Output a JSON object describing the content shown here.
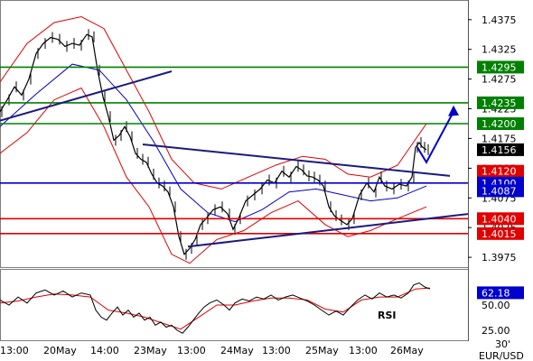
{
  "chart_data": [
    {
      "type": "line",
      "pair": "EUR/USD",
      "timeframe": "30'",
      "x_labels": [
        "13:00",
        "20May",
        "14:00",
        "23May",
        "13:00",
        "24May",
        "13:00",
        "25May",
        "13:00",
        "26May"
      ],
      "y_ticks": [
        1.4375,
        1.4325,
        1.4275,
        1.4225,
        1.4175,
        1.4125,
        1.4075,
        1.4025,
        1.3975
      ],
      "y_range": [
        1.396,
        1.4405
      ],
      "last_price": 1.4156,
      "level_tags": [
        {
          "value": "1.4295",
          "color": "#008000"
        },
        {
          "value": "1.4235",
          "color": "#008000"
        },
        {
          "value": "1.4200",
          "color": "#008000"
        },
        {
          "value": "1.4156",
          "color": "#000000"
        },
        {
          "value": "1.4120",
          "color": "#e00000"
        },
        {
          "value": "1.4100",
          "color": "#0000cc"
        },
        {
          "value": "1.4087",
          "color": "#0000cc"
        },
        {
          "value": "1.4040",
          "color": "#e00000"
        },
        {
          "value": "1.4015",
          "color": "#e00000"
        }
      ],
      "horizontal_levels": [
        {
          "value": 1.4295,
          "color": "#008000"
        },
        {
          "value": 1.4235,
          "color": "#008000"
        },
        {
          "value": 1.42,
          "color": "#008000"
        },
        {
          "value": 1.41,
          "color": "#0000cc"
        },
        {
          "value": 1.404,
          "color": "#e00000"
        },
        {
          "value": 1.4015,
          "color": "#e00000"
        }
      ],
      "trendlines": [
        {
          "from": [
            0,
            1.4205
          ],
          "to": [
            190,
            1.4288
          ]
        },
        {
          "from": [
            158,
            1.4165
          ],
          "to": [
            498,
            1.4112
          ]
        },
        {
          "from": [
            208,
            1.3993
          ],
          "to": [
            518,
            1.4048
          ]
        }
      ],
      "projection": [
        [
          472,
          1.4135
        ],
        [
          502,
          1.422
        ]
      ],
      "price_path": [
        [
          0,
          1.422
        ],
        [
          8,
          1.424
        ],
        [
          16,
          1.4262
        ],
        [
          24,
          1.4248
        ],
        [
          32,
          1.4275
        ],
        [
          40,
          1.4318
        ],
        [
          48,
          1.4335
        ],
        [
          56,
          1.4345
        ],
        [
          64,
          1.4342
        ],
        [
          72,
          1.433
        ],
        [
          80,
          1.4335
        ],
        [
          88,
          1.4332
        ],
        [
          96,
          1.435
        ],
        [
          102,
          1.4346
        ],
        [
          108,
          1.429
        ],
        [
          114,
          1.4245
        ],
        [
          120,
          1.4212
        ],
        [
          126,
          1.4172
        ],
        [
          132,
          1.418
        ],
        [
          138,
          1.4195
        ],
        [
          144,
          1.4178
        ],
        [
          150,
          1.415
        ],
        [
          156,
          1.414
        ],
        [
          162,
          1.4135
        ],
        [
          168,
          1.4115
        ],
        [
          174,
          1.41
        ],
        [
          180,
          1.4095
        ],
        [
          186,
          1.4085
        ],
        [
          192,
          1.406
        ],
        [
          198,
          1.401
        ],
        [
          204,
          1.398
        ],
        [
          210,
          1.399
        ],
        [
          216,
          1.4005
        ],
        [
          222,
          1.403
        ],
        [
          228,
          1.404
        ],
        [
          236,
          1.4055
        ],
        [
          244,
          1.406
        ],
        [
          252,
          1.4048
        ],
        [
          258,
          1.4022
        ],
        [
          264,
          1.404
        ],
        [
          272,
          1.407
        ],
        [
          280,
          1.408
        ],
        [
          288,
          1.409
        ],
        [
          296,
          1.4105
        ],
        [
          304,
          1.41
        ],
        [
          312,
          1.412
        ],
        [
          320,
          1.411
        ],
        [
          328,
          1.4128
        ],
        [
          334,
          1.4122
        ],
        [
          340,
          1.4112
        ],
        [
          346,
          1.411
        ],
        [
          352,
          1.4105
        ],
        [
          358,
          1.4095
        ],
        [
          364,
          1.406
        ],
        [
          370,
          1.4045
        ],
        [
          376,
          1.4038
        ],
        [
          384,
          1.403
        ],
        [
          390,
          1.404
        ],
        [
          398,
          1.408
        ],
        [
          406,
          1.41
        ],
        [
          414,
          1.4085
        ],
        [
          420,
          1.411
        ],
        [
          426,
          1.4095
        ],
        [
          434,
          1.409
        ],
        [
          442,
          1.4098
        ],
        [
          450,
          1.4095
        ],
        [
          456,
          1.411
        ],
        [
          460,
          1.416
        ],
        [
          464,
          1.4168
        ],
        [
          468,
          1.416
        ],
        [
          472,
          1.4156
        ]
      ],
      "ma_path": [
        [
          0,
          1.4195
        ],
        [
          40,
          1.425
        ],
        [
          80,
          1.43
        ],
        [
          110,
          1.429
        ],
        [
          140,
          1.424
        ],
        [
          170,
          1.417
        ],
        [
          200,
          1.409
        ],
        [
          230,
          1.405
        ],
        [
          260,
          1.4035
        ],
        [
          290,
          1.4055
        ],
        [
          320,
          1.4085
        ],
        [
          350,
          1.409
        ],
        [
          380,
          1.408
        ],
        [
          410,
          1.407
        ],
        [
          440,
          1.4075
        ],
        [
          472,
          1.4095
        ]
      ],
      "bollinger_upper": [
        [
          0,
          1.427
        ],
        [
          30,
          1.4335
        ],
        [
          60,
          1.437
        ],
        [
          90,
          1.438
        ],
        [
          115,
          1.436
        ],
        [
          140,
          1.429
        ],
        [
          165,
          1.422
        ],
        [
          190,
          1.414
        ],
        [
          215,
          1.41
        ],
        [
          245,
          1.409
        ],
        [
          275,
          1.411
        ],
        [
          305,
          1.413
        ],
        [
          335,
          1.4145
        ],
        [
          360,
          1.414
        ],
        [
          385,
          1.4115
        ],
        [
          410,
          1.411
        ],
        [
          440,
          1.413
        ],
        [
          472,
          1.42
        ]
      ],
      "bollinger_lower": [
        [
          0,
          1.415
        ],
        [
          30,
          1.4185
        ],
        [
          60,
          1.424
        ],
        [
          90,
          1.426
        ],
        [
          115,
          1.4195
        ],
        [
          140,
          1.411
        ],
        [
          165,
          1.406
        ],
        [
          190,
          1.398
        ],
        [
          210,
          1.3965
        ],
        [
          240,
          1.4005
        ],
        [
          270,
          1.402
        ],
        [
          300,
          1.405
        ],
        [
          330,
          1.407
        ],
        [
          360,
          1.403
        ],
        [
          385,
          1.401
        ],
        [
          410,
          1.402
        ],
        [
          440,
          1.404
        ],
        [
          472,
          1.406
        ]
      ],
      "rsi": {
        "label": "RSI",
        "ticks": [
          "62.18",
          "50.00",
          "25.00"
        ],
        "tick_values": [
          62.18,
          50,
          25
        ],
        "range": [
          15,
          85
        ],
        "values": [
          [
            0,
            55
          ],
          [
            10,
            50
          ],
          [
            20,
            58
          ],
          [
            30,
            52
          ],
          [
            40,
            62
          ],
          [
            50,
            65
          ],
          [
            60,
            60
          ],
          [
            70,
            64
          ],
          [
            80,
            58
          ],
          [
            90,
            62
          ],
          [
            100,
            60
          ],
          [
            106,
            45
          ],
          [
            112,
            38
          ],
          [
            118,
            35
          ],
          [
            124,
            42
          ],
          [
            130,
            48
          ],
          [
            136,
            40
          ],
          [
            142,
            45
          ],
          [
            148,
            38
          ],
          [
            154,
            42
          ],
          [
            160,
            35
          ],
          [
            166,
            38
          ],
          [
            172,
            30
          ],
          [
            178,
            33
          ],
          [
            184,
            28
          ],
          [
            190,
            30
          ],
          [
            196,
            25
          ],
          [
            202,
            22
          ],
          [
            208,
            28
          ],
          [
            214,
            35
          ],
          [
            220,
            42
          ],
          [
            226,
            48
          ],
          [
            232,
            52
          ],
          [
            240,
            55
          ],
          [
            248,
            50
          ],
          [
            254,
            45
          ],
          [
            260,
            52
          ],
          [
            268,
            56
          ],
          [
            276,
            54
          ],
          [
            284,
            58
          ],
          [
            292,
            56
          ],
          [
            300,
            60
          ],
          [
            308,
            55
          ],
          [
            316,
            58
          ],
          [
            324,
            60
          ],
          [
            332,
            57
          ],
          [
            340,
            54
          ],
          [
            348,
            50
          ],
          [
            356,
            45
          ],
          [
            364,
            40
          ],
          [
            372,
            44
          ],
          [
            380,
            40
          ],
          [
            388,
            48
          ],
          [
            396,
            55
          ],
          [
            404,
            60
          ],
          [
            412,
            56
          ],
          [
            420,
            62
          ],
          [
            428,
            58
          ],
          [
            436,
            60
          ],
          [
            444,
            57
          ],
          [
            452,
            62
          ],
          [
            458,
            70
          ],
          [
            464,
            72
          ],
          [
            470,
            68
          ],
          [
            476,
            66
          ]
        ],
        "signal": [
          [
            0,
            52
          ],
          [
            20,
            54
          ],
          [
            40,
            58
          ],
          [
            60,
            61
          ],
          [
            80,
            60
          ],
          [
            100,
            58
          ],
          [
            120,
            45
          ],
          [
            140,
            42
          ],
          [
            160,
            38
          ],
          [
            180,
            32
          ],
          [
            200,
            26
          ],
          [
            220,
            38
          ],
          [
            240,
            50
          ],
          [
            260,
            50
          ],
          [
            280,
            54
          ],
          [
            300,
            57
          ],
          [
            320,
            57
          ],
          [
            340,
            55
          ],
          [
            360,
            46
          ],
          [
            380,
            43
          ],
          [
            400,
            55
          ],
          [
            420,
            58
          ],
          [
            440,
            58
          ],
          [
            460,
            66
          ],
          [
            476,
            67
          ]
        ]
      }
    }
  ]
}
